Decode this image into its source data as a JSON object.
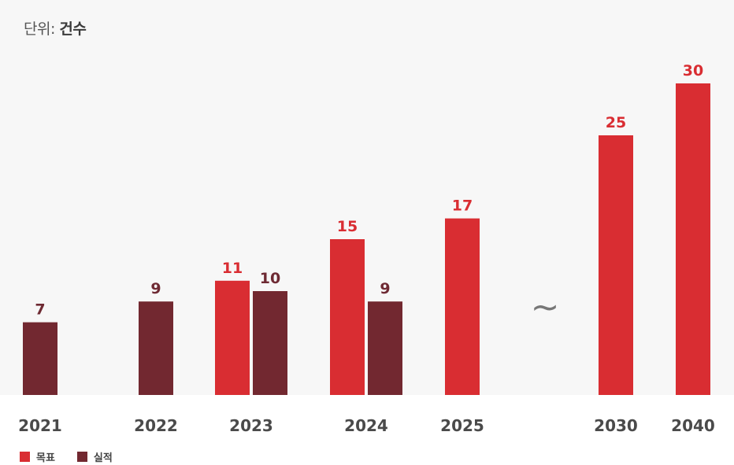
{
  "unit": {
    "prefix": "단위:",
    "value": "건수"
  },
  "colors": {
    "target": "#d92d32",
    "actual": "#722830",
    "target_label": "#d92d32",
    "actual_label": "#6e2a33",
    "axis_text": "#4a4a4a",
    "break_mark": "#777777"
  },
  "chart_data": {
    "type": "bar",
    "title": "",
    "xlabel": "",
    "ylabel": "",
    "ylim": [
      0,
      30
    ],
    "grid": false,
    "legend_position": "bottom-left",
    "categories": [
      "2021",
      "2022",
      "2023",
      "2024",
      "2025",
      "2030",
      "2040"
    ],
    "axis_break": {
      "between": [
        "2025",
        "2030"
      ],
      "symbol": "~"
    },
    "series": [
      {
        "name": "목표",
        "color": "target",
        "values": [
          null,
          null,
          11,
          15,
          17,
          25,
          30
        ]
      },
      {
        "name": "실적",
        "color": "actual",
        "values": [
          7,
          9,
          10,
          9,
          null,
          null,
          null
        ]
      }
    ]
  }
}
